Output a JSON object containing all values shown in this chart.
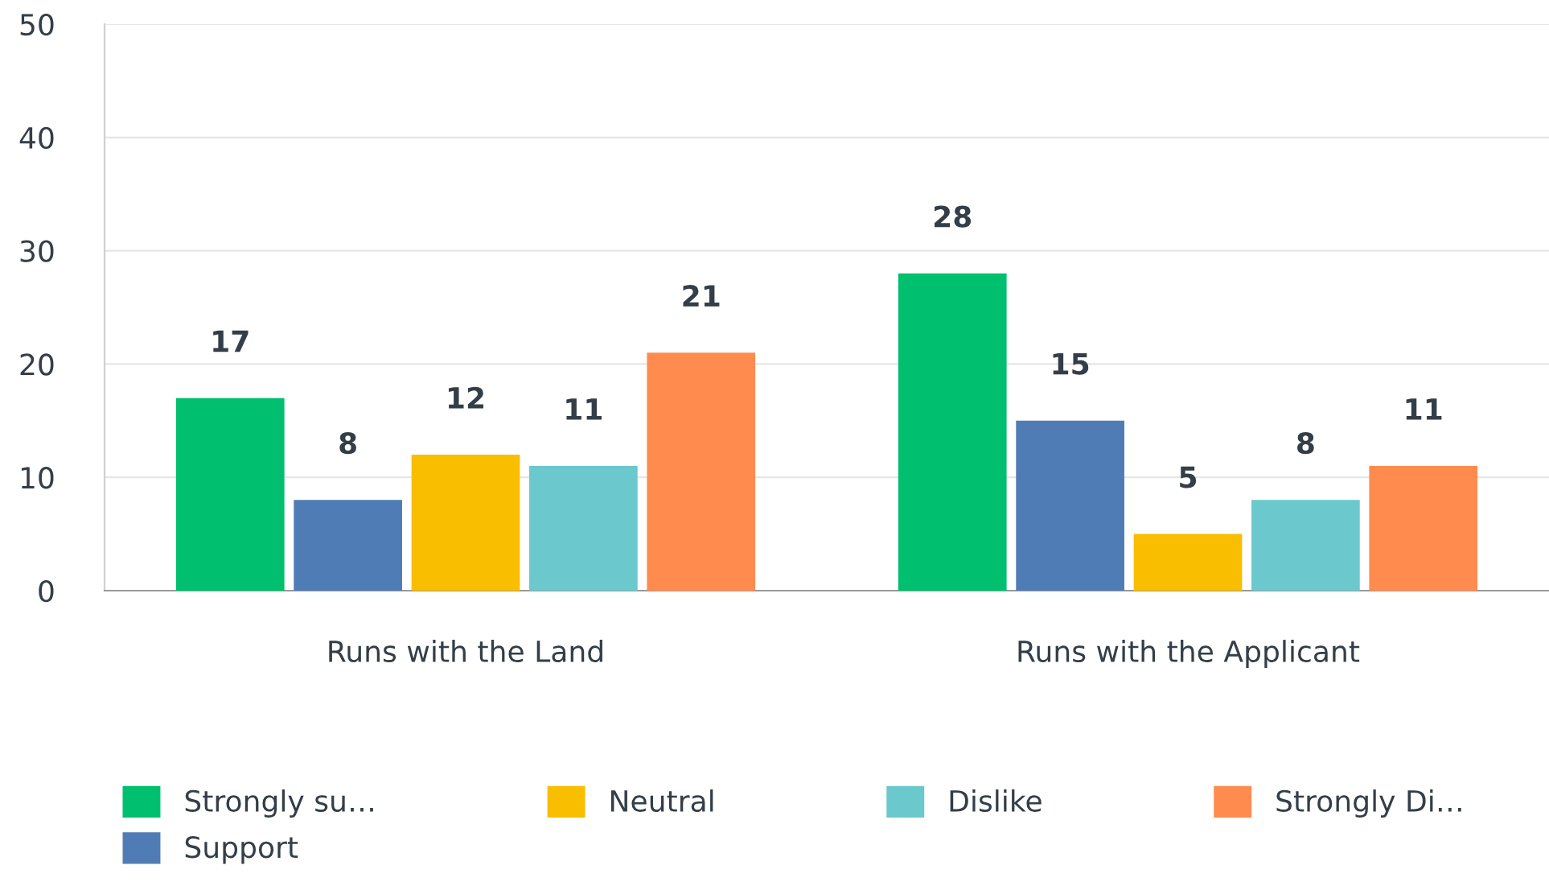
{
  "chart_data": {
    "type": "bar",
    "categories": [
      "Runs with the Land",
      "Runs with the Applicant"
    ],
    "series": [
      {
        "name": "Strongly su…",
        "color": "#00bf6f",
        "values": [
          17,
          28
        ]
      },
      {
        "name": "Support",
        "color": "#507cb6",
        "values": [
          8,
          15
        ]
      },
      {
        "name": "Neutral",
        "color": "#f9be00",
        "values": [
          12,
          5
        ]
      },
      {
        "name": "Dislike",
        "color": "#6bc8cd",
        "values": [
          11,
          8
        ]
      },
      {
        "name": "Strongly Di…",
        "color": "#ff8b4f",
        "values": [
          21,
          11
        ]
      }
    ],
    "ylim": [
      0,
      50
    ],
    "yticks": [
      0,
      10,
      20,
      30,
      40,
      50
    ],
    "grid": "y",
    "legend": "bottom",
    "data_labels": true
  }
}
